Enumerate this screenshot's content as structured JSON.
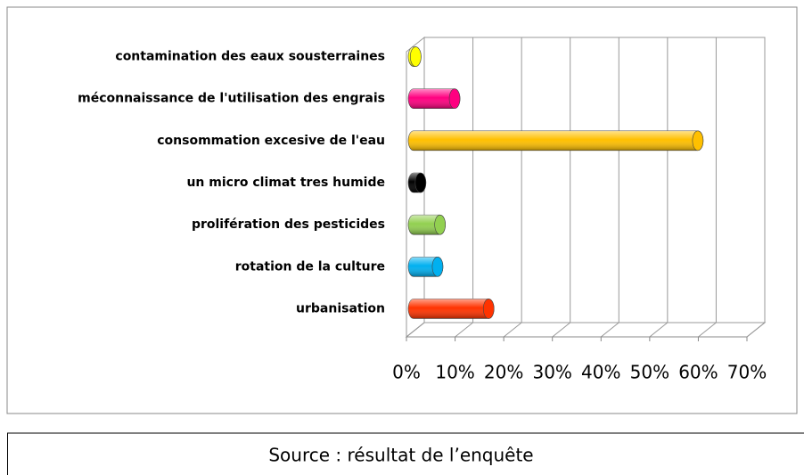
{
  "chart_data": {
    "type": "bar",
    "orientation": "horizontal",
    "categories": [
      "contamination des eaux sousterraines",
      "méconnaissance de l'utilisation des engrais",
      "consommation excesive de l'eau",
      "un micro climat tres humide",
      "prolifération des pesticides",
      "rotation de la culture",
      "urbanisation"
    ],
    "values": [
      3,
      11,
      61,
      4,
      8,
      7.5,
      18
    ],
    "colors": [
      "#ffff00",
      "#ff0080",
      "#ffc000",
      "#000000",
      "#92d050",
      "#00b0f0",
      "#ff3300"
    ],
    "xlim": [
      0,
      70
    ],
    "xticks": [
      {
        "value": 0,
        "label": "0%"
      },
      {
        "value": 10,
        "label": "10%"
      },
      {
        "value": 20,
        "label": "20%"
      },
      {
        "value": 30,
        "label": "30%"
      },
      {
        "value": 40,
        "label": "40%"
      },
      {
        "value": 50,
        "label": "50%"
      },
      {
        "value": 60,
        "label": "60%"
      },
      {
        "value": 70,
        "label": "70%"
      }
    ],
    "grid": true
  },
  "caption": "Source : résultat de l’enquête"
}
